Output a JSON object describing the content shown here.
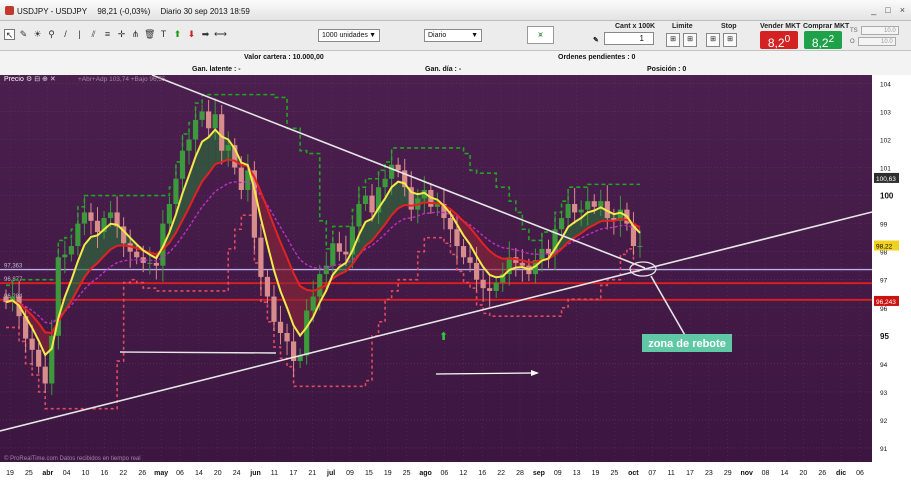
{
  "window": {
    "symbol": "USDJPY - USDJPY",
    "price_change": "98,21 (-0,03%)",
    "period_date": "Diario  30 sep 2013 18:59",
    "controls": [
      "_",
      "□",
      "×"
    ]
  },
  "toolbar": {
    "tools": [
      "pointer-tool",
      "pencil-tool",
      "sun-tool",
      "zoom-tool",
      "line-tool",
      "vertical-line-tool",
      "channel-tool",
      "fibonacci-tool",
      "crosshair-tool",
      "pitchfork-tool",
      "delete-tool",
      "text-tool",
      "up-arrow-tool",
      "down-arrow-tool",
      "right-arrow-tool",
      "ruler-tool"
    ],
    "units_select": "1000 unidades",
    "period_select": "Diario"
  },
  "trade": {
    "qty_label": "Cant x 100K",
    "qty_value": "1",
    "limit_label": "Limite",
    "stop_label": "Stop",
    "sell_label": "Vender MKT",
    "buy_label": "Comprar MKT",
    "sell_price": "8,2",
    "sell_sup": "0",
    "buy_price": "8,2",
    "buy_sup": "2",
    "right_fields": [
      {
        "key": "TS",
        "value": "10.0"
      },
      {
        "key": "O",
        "value": "10.0"
      }
    ],
    "sell_color": "#d32222",
    "buy_color": "#1fa14a"
  },
  "info": {
    "wallet": "Valor cartera : 10.000,00",
    "pending": "Ordenes pendientes : 0",
    "latent": "Gan. latente : -",
    "daily": "Gan. día : -",
    "position": "Posición : 0"
  },
  "chart": {
    "panel_label": "Precio",
    "legend_text": "+Abr+Adp 103,74 +Bajo 96,55",
    "watermark": "© ProRealTime.com  Datos recibidos en tiempo real",
    "annotation": "zona de rebote",
    "left_labels": [
      "97,363",
      "96,877",
      "96,284"
    ],
    "price_tags": [
      {
        "value": "100,63",
        "price": 100.63,
        "bg": "#2e2e2e",
        "fg": "#ffffff"
      },
      {
        "value": "98,22",
        "price": 98.22,
        "bg": "#f0d020",
        "fg": "#000000"
      },
      {
        "value": "96,243",
        "price": 96.243,
        "bg": "#cc1111",
        "fg": "#ffffff"
      }
    ],
    "colors": {
      "background": "#4e2250",
      "bull": "#3c9a3c",
      "bear": "#d88c8c",
      "ma_fast": "#f2e94a",
      "ma_slow": "#e32222",
      "dashed": "#1ea61e",
      "stop": "#e34a60"
    }
  },
  "chart_data": {
    "type": "candlestick",
    "symbol": "USDJPY",
    "ylim": [
      90.5,
      104.3
    ],
    "y_ticks": [
      91,
      92,
      93,
      94,
      95,
      96,
      97,
      98,
      99,
      100,
      101,
      102,
      103,
      104
    ],
    "horizontal_levels": [
      97.363,
      96.877,
      96.284
    ],
    "x_ticks": [
      "19",
      "25",
      "abr",
      "04",
      "10",
      "16",
      "22",
      "26",
      "may",
      "06",
      "14",
      "20",
      "24",
      "jun",
      "11",
      "17",
      "21",
      "jul",
      "09",
      "15",
      "19",
      "25",
      "ago",
      "06",
      "12",
      "16",
      "22",
      "28",
      "sep",
      "09",
      "13",
      "19",
      "25",
      "oct",
      "07",
      "11",
      "17",
      "23",
      "29",
      "nov",
      "08",
      "14",
      "20",
      "26",
      "dic",
      "06"
    ],
    "closes": [
      96.2,
      96.4,
      95.7,
      94.9,
      94.5,
      93.9,
      93.3,
      95.0,
      97.8,
      97.9,
      98.2,
      99.0,
      99.4,
      99.1,
      98.7,
      99.2,
      99.4,
      98.9,
      98.3,
      98.0,
      97.8,
      97.6,
      97.6,
      97.5,
      99.0,
      99.7,
      100.6,
      101.6,
      102.0,
      102.7,
      103.0,
      102.4,
      102.9,
      101.6,
      101.8,
      101.0,
      100.2,
      100.9,
      98.5,
      97.1,
      96.4,
      95.5,
      95.1,
      94.8,
      94.1,
      94.3,
      95.9,
      96.4,
      97.2,
      97.5,
      98.3,
      98.0,
      97.9,
      98.9,
      99.7,
      100.0,
      99.4,
      100.3,
      100.6,
      101.1,
      100.9,
      100.3,
      99.5,
      99.9,
      100.2,
      99.6,
      99.7,
      99.2,
      98.8,
      98.2,
      97.8,
      97.6,
      97.0,
      96.7,
      96.6,
      96.9,
      97.2,
      97.8,
      97.6,
      97.5,
      97.2,
      97.7,
      98.1,
      97.9,
      98.8,
      99.2,
      99.7,
      99.4,
      99.5,
      99.8,
      99.6,
      99.8,
      99.2,
      99.1,
      99.5,
      99.0,
      98.2,
      98.2
    ]
  }
}
